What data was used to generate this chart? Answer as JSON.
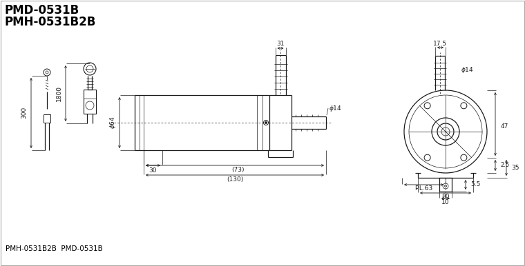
{
  "title_line1": "PMD-0531B",
  "title_line2": "PMH-0531B2B",
  "bg_color": "#ffffff",
  "line_color": "#1a1a1a",
  "label_bottom": "PMH-0531B2B  PMD-0531B",
  "border_color": "#aaaaaa"
}
